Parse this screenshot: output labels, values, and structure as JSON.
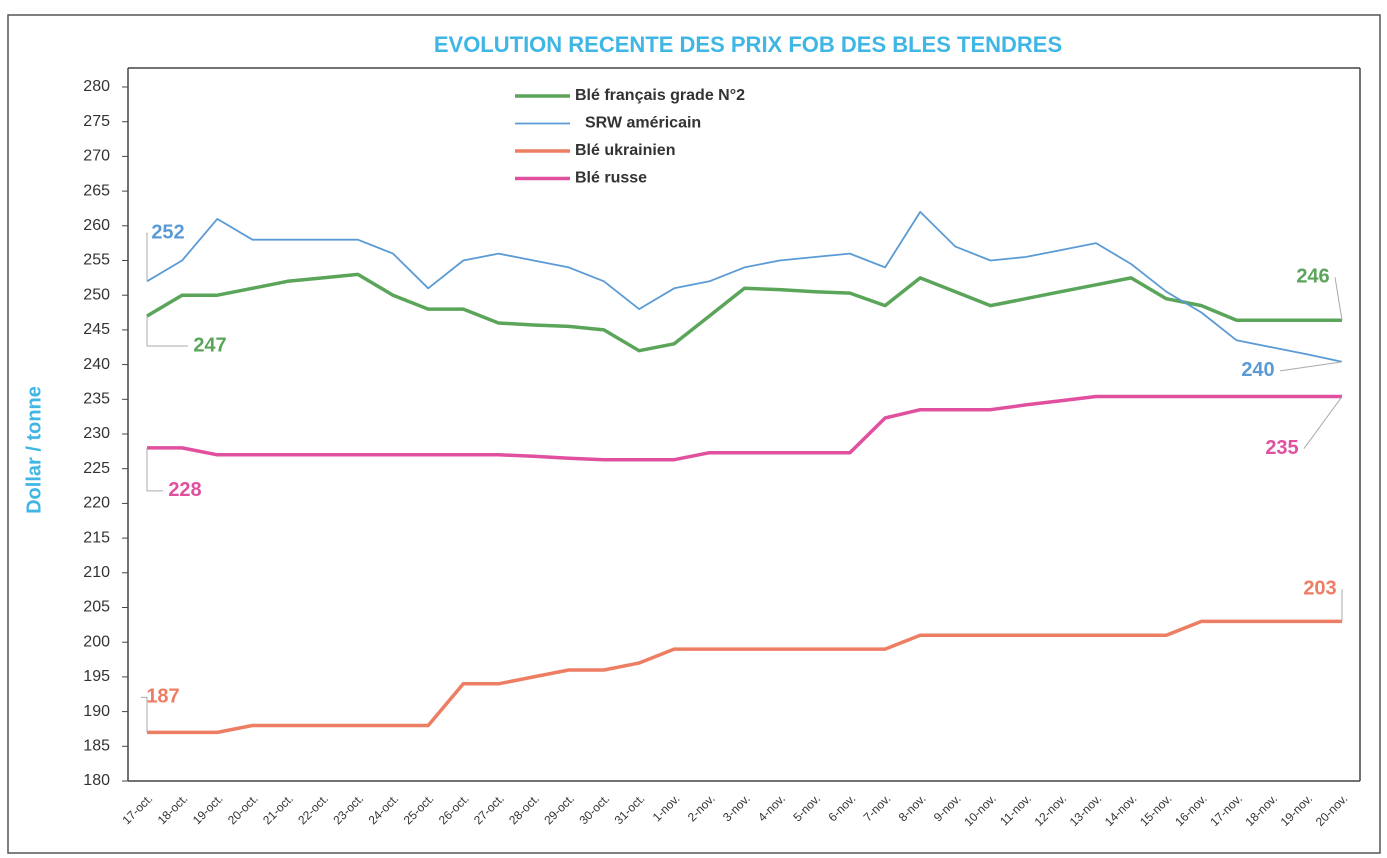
{
  "chart_data": {
    "type": "line",
    "title": "EVOLUTION RECENTE DES PRIX FOB DES BLES TENDRES",
    "y_label": "Dollar / tonne",
    "categories": [
      "17-oct.",
      "18-oct.",
      "19-oct.",
      "20-oct.",
      "21-oct.",
      "22-oct.",
      "23-oct.",
      "24-oct.",
      "25-oct.",
      "26-oct.",
      "27-oct.",
      "28-oct.",
      "29-oct.",
      "30-oct.",
      "31-oct.",
      "1-nov.",
      "2-nov.",
      "3-nov.",
      "4-nov.",
      "5-nov.",
      "6-nov.",
      "7-nov.",
      "8-nov.",
      "9-nov.",
      "10-nov.",
      "11-nov.",
      "12-nov.",
      "13-nov.",
      "14-nov.",
      "15-nov.",
      "16-nov.",
      "17-nov.",
      "18-nov.",
      "19-nov.",
      "20-nov."
    ],
    "ylim": [
      180,
      280
    ],
    "yticks": [
      180,
      185,
      190,
      195,
      200,
      205,
      210,
      215,
      220,
      225,
      230,
      235,
      240,
      245,
      250,
      255,
      260,
      265,
      270,
      275,
      280
    ],
    "grid": false,
    "legend": "top",
    "series": [
      {
        "name": "Blé français grade N°2",
        "color": "#5aa55a",
        "width": 3.5,
        "values": [
          247,
          250,
          250,
          251,
          252,
          252.5,
          253,
          250,
          248,
          248,
          246,
          245.7,
          245.5,
          245,
          242,
          243,
          247,
          251,
          250.8,
          250.5,
          250.3,
          248.5,
          252.5,
          250.5,
          248.5,
          249.5,
          250.5,
          251.5,
          252.5,
          249.5,
          248.5,
          246.4,
          246.4,
          246.4,
          246.4
        ],
        "value_labels": [
          "247",
          null,
          null,
          null,
          null,
          null,
          null,
          null,
          null,
          null,
          null,
          null,
          null,
          null,
          null,
          null,
          null,
          null,
          null,
          null,
          null,
          null,
          null,
          null,
          null,
          null,
          null,
          null,
          null,
          null,
          null,
          null,
          null,
          null,
          "246"
        ]
      },
      {
        "name": "SRW américain",
        "color": "#5b9bd5",
        "width": 1.8,
        "values": [
          252,
          255,
          261,
          258,
          258,
          258,
          258,
          256,
          251,
          255,
          256,
          255,
          254,
          252,
          248,
          251,
          252,
          254,
          255,
          255.5,
          256,
          254,
          262,
          257,
          255,
          255.5,
          256.5,
          257.5,
          254.5,
          250.5,
          247.5,
          243.5,
          242.5,
          241.5,
          240.4
        ],
        "value_labels": [
          "252",
          null,
          null,
          null,
          null,
          null,
          null,
          null,
          null,
          null,
          null,
          null,
          null,
          null,
          null,
          null,
          null,
          null,
          null,
          null,
          null,
          null,
          null,
          null,
          null,
          null,
          null,
          null,
          null,
          null,
          null,
          null,
          null,
          null,
          "240"
        ]
      },
      {
        "name": "Blé ukrainien",
        "color": "#ed7d63",
        "width": 3.5,
        "values": [
          187,
          187,
          187,
          188,
          188,
          188,
          188,
          188,
          188,
          194,
          194,
          195,
          196,
          196,
          197,
          199,
          199,
          199,
          199,
          199,
          199,
          199,
          201,
          201,
          201,
          201,
          201,
          201,
          201,
          201,
          203,
          203,
          203,
          203,
          203
        ],
        "value_labels": [
          "187",
          null,
          null,
          null,
          null,
          null,
          null,
          null,
          null,
          null,
          null,
          null,
          null,
          null,
          null,
          null,
          null,
          null,
          null,
          null,
          null,
          null,
          null,
          null,
          null,
          null,
          null,
          null,
          null,
          null,
          null,
          null,
          null,
          null,
          "203"
        ]
      },
      {
        "name": "Blé russe",
        "color": "#e0509f",
        "width": 3.5,
        "values": [
          228,
          228,
          227,
          227,
          227,
          227,
          227,
          227,
          227,
          227,
          227,
          226.8,
          226.5,
          226.3,
          226.3,
          226.3,
          227.3,
          227.3,
          227.3,
          227.3,
          227.3,
          232.3,
          233.5,
          233.5,
          233.5,
          234.2,
          234.8,
          235.4,
          235.4,
          235.4,
          235.4,
          235.4,
          235.4,
          235.4,
          235.4
        ],
        "value_labels": [
          "228",
          null,
          null,
          null,
          null,
          null,
          null,
          null,
          null,
          null,
          null,
          null,
          null,
          null,
          null,
          null,
          null,
          null,
          null,
          null,
          null,
          null,
          null,
          null,
          null,
          null,
          null,
          null,
          null,
          null,
          null,
          null,
          null,
          null,
          "235"
        ]
      }
    ]
  }
}
